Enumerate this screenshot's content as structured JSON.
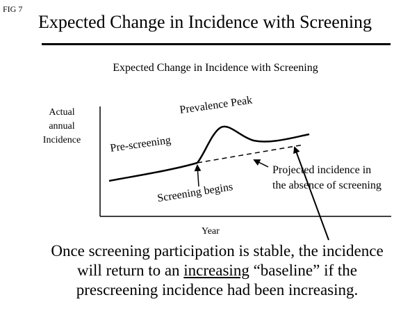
{
  "fig_label": "FIG 7",
  "slide_title": "Expected Change in Incidence with Screening",
  "figure_caption": "Expected Change in Incidence with Screening",
  "axes": {
    "y_label_lines": [
      "Actual",
      "annual",
      "Incidence"
    ],
    "x_label": "Year"
  },
  "annotations": {
    "prevalence_peak": "Prevalence Peak",
    "pre_screening": "Pre-screening",
    "screening_begins": "Screening begins",
    "projected_line1": "Projected incidence in",
    "projected_line2": "the absence of screening"
  },
  "conclusion": {
    "line1": "Once screening participation is stable, the incidence",
    "line2_before": "will return to an ",
    "line2_underlined": "increasing",
    "line2_after": " “baseline” if the",
    "line3": "prescreening incidence had been increasing."
  },
  "colors": {
    "ink": "#000000",
    "background": "#ffffff"
  }
}
